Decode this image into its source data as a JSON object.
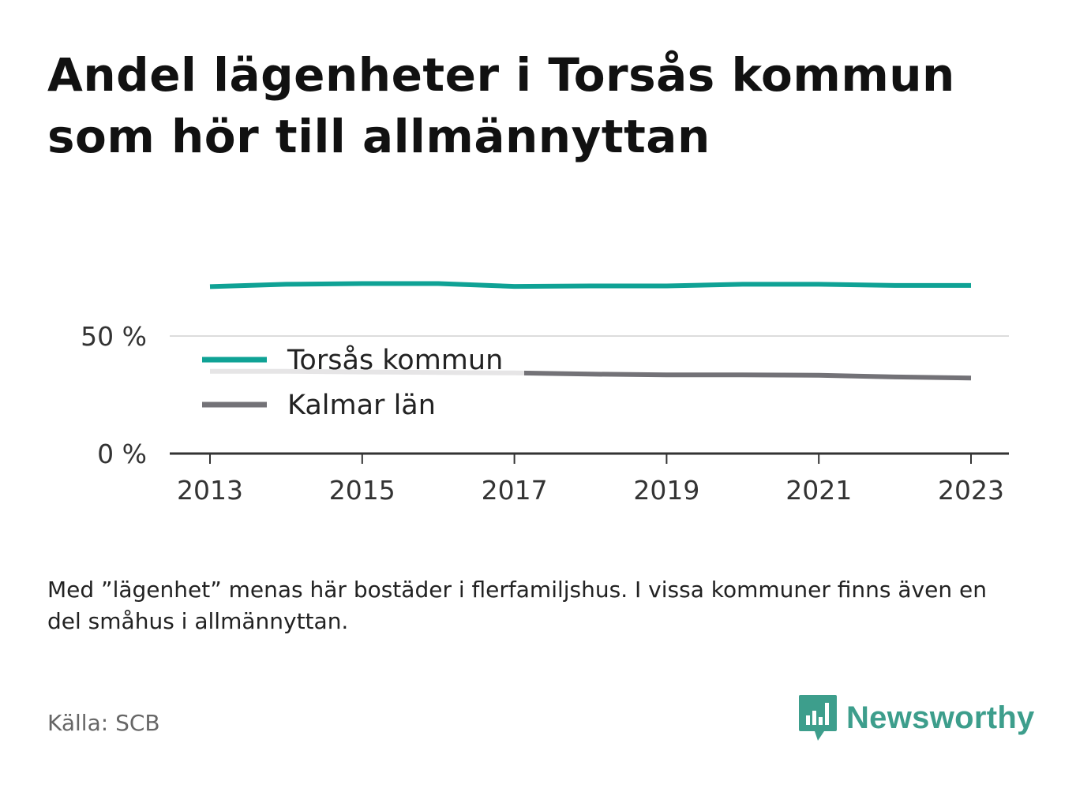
{
  "title": "Andel lägenheter i Torsås kommun som hör till allmännyttan",
  "note": "Med ”lägenhet” menas här bostäder i flerfamiljshus. I vissa kommuner finns även en del småhus i allmännyttan.",
  "source": "Källa: SCB",
  "brand": {
    "name": "Newsworthy",
    "color": "#3d9e8c",
    "icon": "bar-chart-speech-bubble-icon"
  },
  "chart_data": {
    "type": "line",
    "x": [
      2013,
      2014,
      2015,
      2016,
      2017,
      2018,
      2019,
      2020,
      2021,
      2022,
      2023
    ],
    "xticks": [
      "2013",
      "2015",
      "2017",
      "2019",
      "2021",
      "2023"
    ],
    "yticks": [
      "0 %",
      "50 %"
    ],
    "ylim": [
      0,
      100
    ],
    "grid": "horizontal",
    "legend_position": "inside-left",
    "series": [
      {
        "name": "Torsås kommun",
        "color": "#0fa295",
        "values": [
          71,
          72,
          72.3,
          72.3,
          71.1,
          71.3,
          71.3,
          72,
          72,
          71.5,
          71.5
        ]
      },
      {
        "name": "Kalmar län",
        "color": "#737277",
        "values": [
          35,
          35,
          34.7,
          34.5,
          34.3,
          33.8,
          33.5,
          33.5,
          33.3,
          32.6,
          32.1
        ]
      }
    ]
  }
}
